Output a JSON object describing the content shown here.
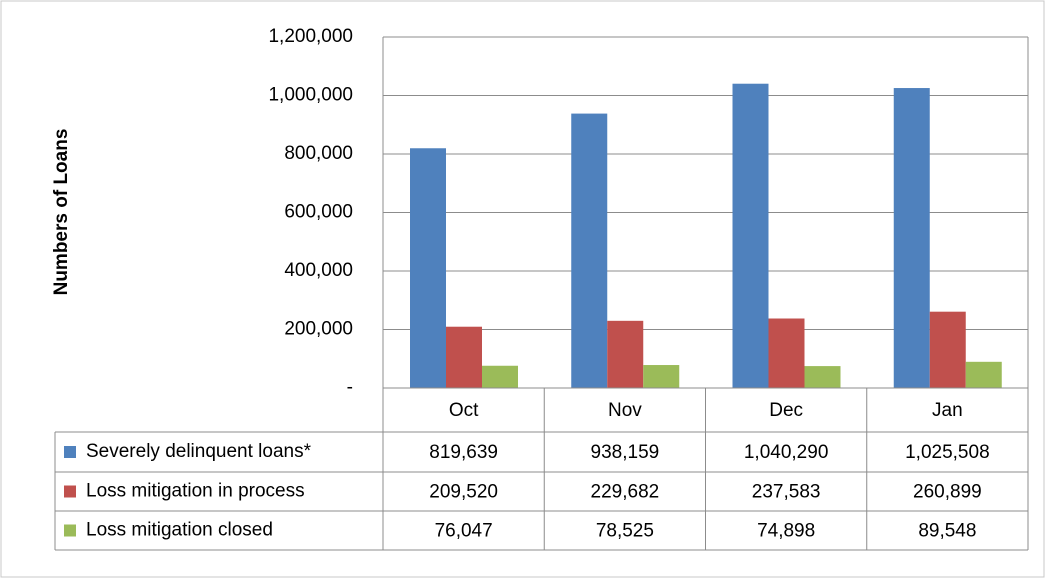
{
  "chart_data": {
    "type": "bar",
    "y_label": "Numbers of Loans",
    "categories": [
      "Oct",
      "Nov",
      "Dec",
      "Jan"
    ],
    "series": [
      {
        "name": "Severely delinquent loans*",
        "color": "#4f81bd",
        "values": [
          819639,
          938159,
          1040290,
          1025508
        ],
        "value_labels": [
          "819,639",
          "938,159",
          "1,040,290",
          "1,025,508"
        ]
      },
      {
        "name": "Loss mitigation in process",
        "color": "#c0504d",
        "values": [
          209520,
          229682,
          237583,
          260899
        ],
        "value_labels": [
          "209,520",
          "229,682",
          "237,583",
          "260,899"
        ]
      },
      {
        "name": "Loss mitigation closed",
        "color": "#9bbb59",
        "values": [
          76047,
          78525,
          74898,
          89548
        ],
        "value_labels": [
          "76,047",
          "78,525",
          "74,898",
          "89,548"
        ]
      }
    ],
    "ylim": [
      0,
      1200000
    ],
    "yticks": [
      {
        "value": 0,
        "label": "-"
      },
      {
        "value": 200000,
        "label": "200,000"
      },
      {
        "value": 400000,
        "label": "400,000"
      },
      {
        "value": 600000,
        "label": "600,000"
      },
      {
        "value": 800000,
        "label": "800,000"
      },
      {
        "value": 1000000,
        "label": "1,000,000"
      },
      {
        "value": 1200000,
        "label": "1,200,000"
      }
    ],
    "grid": true
  }
}
